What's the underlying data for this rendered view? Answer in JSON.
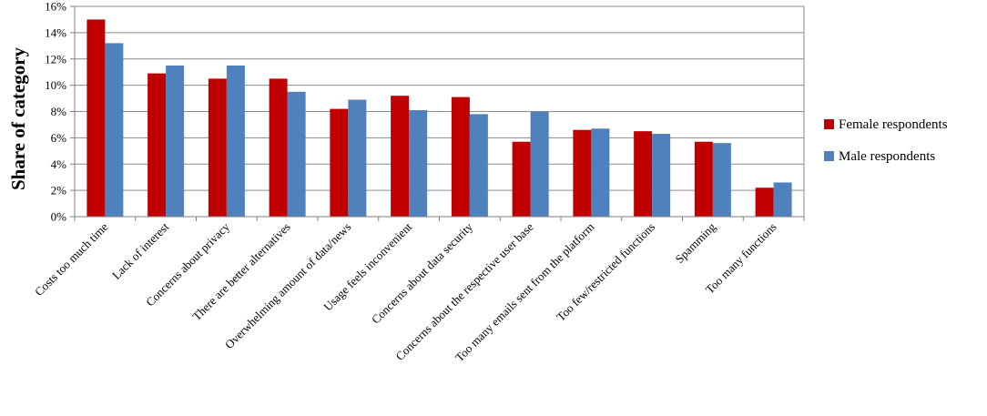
{
  "chart_data": {
    "type": "bar",
    "ylabel": "Share of category",
    "xlabel": "",
    "ylim": [
      0,
      16
    ],
    "y_ticks": [
      "0%",
      "2%",
      "4%",
      "6%",
      "8%",
      "10%",
      "12%",
      "14%",
      "16%"
    ],
    "y_tick_values": [
      0,
      2,
      4,
      6,
      8,
      10,
      12,
      14,
      16
    ],
    "grid": true,
    "legend_position": "right",
    "categories": [
      "Costs too much time",
      "Lack of interest",
      "Concerns about privacy",
      "There are better alternatives",
      "Overwhelming amount of data/news",
      "Usage feels inconvenient",
      "Concerns about data security",
      "Concerns about the respective user base",
      "Too many emails sent from the platform",
      "Too few/restricted functions",
      "Spamming",
      "Too many functions"
    ],
    "series": [
      {
        "name": "Female respondents",
        "color": "#c00000",
        "values": [
          15.0,
          10.9,
          10.5,
          10.5,
          8.2,
          9.2,
          9.1,
          5.7,
          6.6,
          6.5,
          5.7,
          2.2
        ]
      },
      {
        "name": "Male respondents",
        "color": "#4f81bd",
        "values": [
          13.2,
          11.5,
          11.5,
          9.5,
          8.9,
          8.1,
          7.8,
          8.0,
          6.7,
          6.3,
          5.6,
          2.6
        ]
      }
    ]
  }
}
